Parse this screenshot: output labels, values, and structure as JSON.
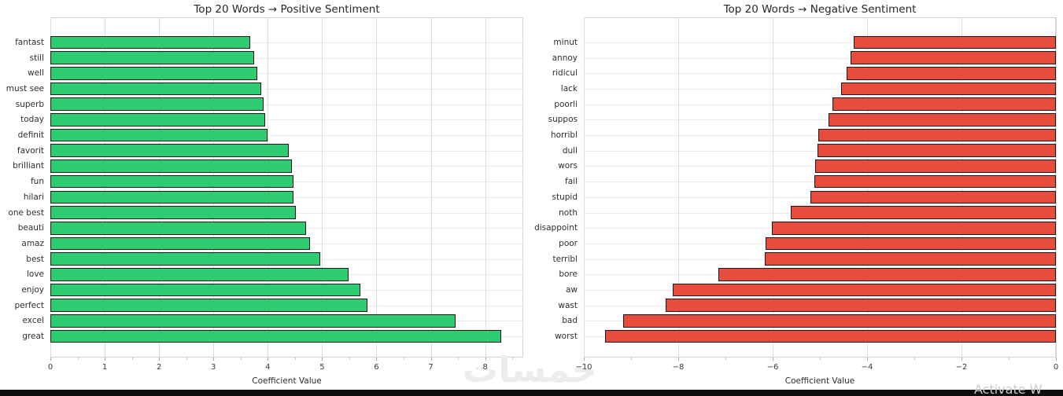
{
  "figure": {
    "background_color": "#ffffff",
    "grid_color": "#dcdcdc",
    "bottom_bar_color": "#0d0d0d"
  },
  "watermarks": {
    "center_text": "خمسات",
    "activate_text": "Activate W"
  },
  "chart_data": [
    {
      "type": "bar",
      "orientation": "horizontal",
      "title": "Top 20 Words → Positive Sentiment",
      "xlabel": "Coefficient Value",
      "ylabel": "",
      "grid": true,
      "legend": false,
      "bar_color": "#2ecc71",
      "bar_edge_color": "#1b1b1b",
      "xlim": [
        0,
        8.7
      ],
      "xticks": [
        0,
        1,
        2,
        3,
        4,
        5,
        6,
        7,
        8
      ],
      "categories": [
        "fantast",
        "still",
        "well",
        "must see",
        "superb",
        "today",
        "definit",
        "favorit",
        "brilliant",
        "fun",
        "hilari",
        "one best",
        "beauti",
        "amaz",
        "best",
        "love",
        "enjoy",
        "perfect",
        "excel",
        "great"
      ],
      "values": [
        3.67,
        3.75,
        3.8,
        3.88,
        3.93,
        3.95,
        3.99,
        4.39,
        4.45,
        4.48,
        4.48,
        4.51,
        4.7,
        4.77,
        4.97,
        5.49,
        5.7,
        5.84,
        7.46,
        8.3
      ]
    },
    {
      "type": "bar",
      "orientation": "horizontal",
      "title": "Top 20 Words → Negative Sentiment",
      "xlabel": "Coefficient Value",
      "ylabel": "",
      "grid": true,
      "legend": false,
      "bar_color": "#e74c3c",
      "bar_edge_color": "#1b1b1b",
      "xlim": [
        -10,
        0
      ],
      "xticks": [
        -10,
        -8,
        -6,
        -4,
        -2,
        0
      ],
      "categories": [
        "minut",
        "annoy",
        "ridicul",
        "lack",
        "poorli",
        "suppos",
        "horribl",
        "dull",
        "wors",
        "fail",
        "stupid",
        "noth",
        "disappoint",
        "poor",
        "terribl",
        "bore",
        "aw",
        "wast",
        "bad",
        "worst"
      ],
      "values": [
        -4.28,
        -4.35,
        -4.43,
        -4.55,
        -4.73,
        -4.82,
        -5.03,
        -5.05,
        -5.1,
        -5.12,
        -5.2,
        -5.62,
        -6.02,
        -6.15,
        -6.17,
        -7.15,
        -8.12,
        -8.27,
        -9.17,
        -9.55
      ]
    }
  ]
}
